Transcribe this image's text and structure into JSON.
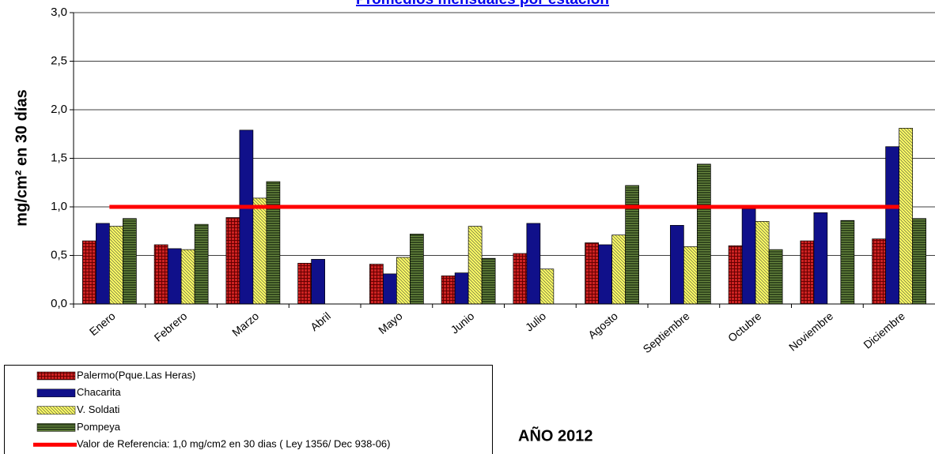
{
  "chart_data": {
    "type": "bar",
    "title": "Promedios mensuales por estación",
    "y_label": "mg/cm² en 30 días",
    "annotation": "AÑO 2012",
    "categories": [
      "Enero",
      "Febrero",
      "Marzo",
      "Abril",
      "Mayo",
      "Junio",
      "Julio",
      "Agosto",
      "Septiembre",
      "Octubre",
      "Noviembre",
      "Diciembre"
    ],
    "series": [
      {
        "name": "Palermo(Pque.Las Heras)",
        "color": "#cc2222",
        "pattern": "grid",
        "values": [
          0.65,
          0.61,
          0.89,
          0.42,
          0.41,
          0.29,
          0.52,
          0.63,
          null,
          0.6,
          0.65,
          0.67
        ]
      },
      {
        "name": "Chacarita",
        "color": "#10108a",
        "pattern": "solid",
        "values": [
          0.83,
          0.57,
          1.79,
          0.46,
          0.31,
          0.32,
          0.83,
          0.61,
          0.81,
          0.98,
          0.94,
          1.62
        ]
      },
      {
        "name": "V. Soldati",
        "color": "#ffff66",
        "pattern": "diagonal",
        "values": [
          0.8,
          0.56,
          1.09,
          null,
          0.48,
          0.8,
          0.36,
          0.71,
          0.59,
          0.85,
          null,
          1.81
        ]
      },
      {
        "name": "Pompeya",
        "color": "#6a8a40",
        "pattern": "horizontal",
        "values": [
          0.88,
          0.82,
          1.26,
          null,
          0.72,
          0.47,
          null,
          1.22,
          1.44,
          0.56,
          0.86,
          0.88
        ]
      },
      {
        "name": "Valor de Referencia: 1,0 mg/cm2 en 30 dias ( Ley 1356/ Dec 938-06)",
        "color": "#ff0000",
        "type": "line",
        "values": [
          1.0,
          1.0,
          1.0,
          1.0,
          1.0,
          1.0,
          1.0,
          1.0,
          1.0,
          1.0,
          1.0,
          1.0
        ]
      }
    ],
    "ylim": [
      0,
      3
    ],
    "yticks": [
      {
        "value": 0,
        "label": "0,0"
      },
      {
        "value": 0.5,
        "label": "0,5"
      },
      {
        "value": 1,
        "label": "1,0"
      },
      {
        "value": 1.5,
        "label": "1,5"
      },
      {
        "value": 2,
        "label": "2,0"
      },
      {
        "value": 2.5,
        "label": "2,5"
      },
      {
        "value": 3,
        "label": "3,0"
      }
    ],
    "grid": true
  }
}
